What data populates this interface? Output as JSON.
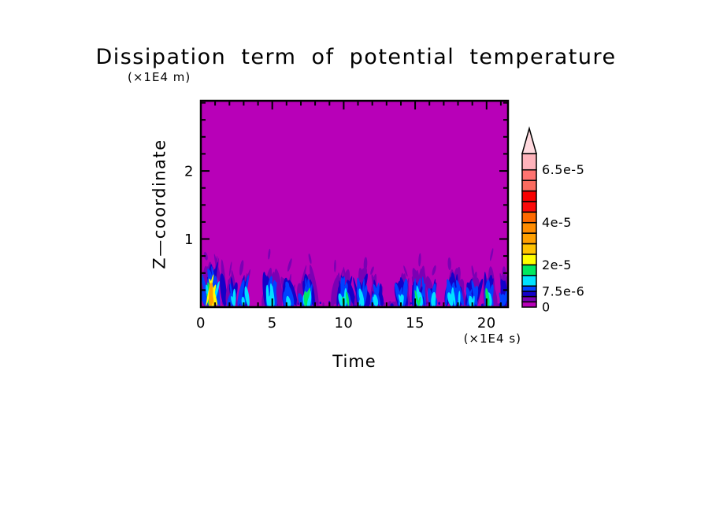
{
  "title": "Dissipation term of potential temperature",
  "axes": {
    "y_units": "(×1E4 m)",
    "x_units": "(×1E4 s)",
    "ylabel": "Z—coordinate",
    "xlabel": "Time",
    "x_tick_labels": [
      "0",
      "5",
      "10",
      "15",
      "20"
    ],
    "y_tick_labels": [
      "1",
      "2"
    ]
  },
  "chart_data": {
    "type": "heatmap",
    "title": "Dissipation term of potential temperature",
    "xlabel": "Time",
    "ylabel": "Z-coordinate",
    "x_units_note": "(×1E4 s)",
    "y_units_note": "(×1E4 m)",
    "xlim": [
      0,
      21.5
    ],
    "ylim": [
      0,
      3.03
    ],
    "x_major_ticks": [
      0,
      5,
      10,
      15,
      20
    ],
    "x_minor_step": 1,
    "y_major_ticks": [
      1,
      2
    ],
    "y_minor_step": 0.25,
    "grid": false,
    "legend_position": "right-colorbar",
    "background_value": 0,
    "background_color": "#B800B8",
    "levels": [
      0,
      2.5e-06,
      5e-06,
      7.5e-06,
      1e-05,
      1.5e-05,
      2e-05,
      2.5e-05,
      3e-05,
      3.5e-05,
      4e-05,
      4.5e-05,
      5e-05,
      5.5e-05,
      6e-05,
      6.5e-05
    ],
    "level_colors": [
      "#B800B8",
      "#7A00B4",
      "#1400C8",
      "#0041FF",
      "#00E1FF",
      "#00E95F",
      "#FFFF00",
      "#FFC300",
      "#FFA000",
      "#FF8C00",
      "#FF6A00",
      "#FB0A0A",
      "#F80000",
      "#FA6B5F",
      "#FF7370",
      "#FFB3BB"
    ],
    "colorbar_max": 7.27e-05,
    "colorbar_arrow_color": "#FFD9DE",
    "colorbar_labels": [
      {
        "value": 0,
        "label": "0"
      },
      {
        "value": 7.5e-06,
        "label": "7.5e-6"
      },
      {
        "value": 2e-05,
        "label": "2e-5"
      },
      {
        "value": 4e-05,
        "label": "4e-5"
      },
      {
        "value": 6.5e-05,
        "label": "6.5e-5"
      }
    ],
    "bursts": [
      {
        "t0": 0.15,
        "t1": 1.95,
        "z_top": 0.8,
        "peak": 3.3e-05,
        "core": 0.33
      },
      {
        "t0": 1.95,
        "t1": 2.65,
        "z_top": 0.56,
        "peak": 1.15e-05,
        "core": 0.4
      },
      {
        "t0": 2.65,
        "t1": 3.35,
        "z_top": 0.62,
        "peak": 1.05e-05,
        "core": 0.5
      },
      {
        "t0": 4.35,
        "t1": 5.6,
        "z_top": 0.62,
        "peak": 1.3e-05,
        "core": 0.45
      },
      {
        "t0": 5.75,
        "t1": 6.6,
        "z_top": 0.5,
        "peak": 1.2e-05,
        "core": 0.4
      },
      {
        "t0": 6.9,
        "t1": 8.2,
        "z_top": 0.62,
        "peak": 1.6e-05,
        "core": 0.45
      },
      {
        "t0": 9.3,
        "t1": 10.6,
        "z_top": 0.6,
        "peak": 1.8e-05,
        "core": 0.5
      },
      {
        "t0": 10.8,
        "t1": 11.8,
        "z_top": 0.58,
        "peak": 1.3e-05,
        "core": 0.5
      },
      {
        "t0": 11.9,
        "t1": 12.6,
        "z_top": 0.5,
        "peak": 1.2e-05,
        "core": 0.5
      },
      {
        "t0": 13.5,
        "t1": 14.6,
        "z_top": 0.55,
        "peak": 1.4e-05,
        "core": 0.5
      },
      {
        "t0": 14.6,
        "t1": 15.8,
        "z_top": 0.6,
        "peak": 1.7e-05,
        "core": 0.55
      },
      {
        "t0": 15.9,
        "t1": 16.5,
        "z_top": 0.5,
        "peak": 1.2e-05,
        "core": 0.5
      },
      {
        "t0": 16.9,
        "t1": 18.3,
        "z_top": 0.6,
        "peak": 1.4e-05,
        "core": 0.6
      },
      {
        "t0": 18.6,
        "t1": 19.6,
        "z_top": 0.52,
        "peak": 1.1e-05,
        "core": 0.5
      },
      {
        "t0": 19.8,
        "t1": 20.6,
        "z_top": 0.62,
        "peak": 1.9e-05,
        "core": 0.45
      },
      {
        "t0": 20.9,
        "t1": 21.5,
        "z_top": 0.5,
        "peak": 9e-06,
        "core": 0.5
      }
    ]
  }
}
